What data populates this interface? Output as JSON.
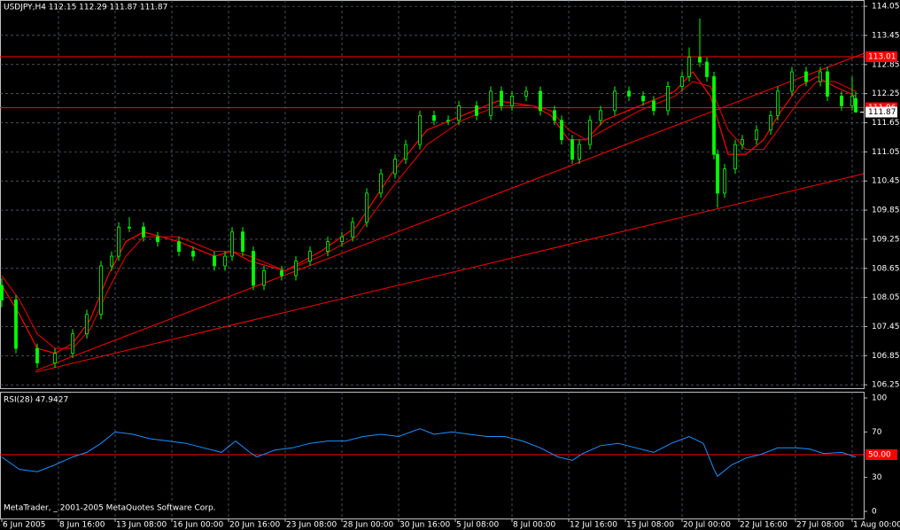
{
  "footer": "MetaTrader, _ 2001-2005 MetaQuotes Software Corp.",
  "chart_data": [
    {
      "type": "candlestick",
      "title": "USDJPY,H4  112.15 112.29 111.87 111.87",
      "color": "#00ff00",
      "x": [
        0,
        4,
        10,
        15,
        20,
        24,
        28,
        31,
        33,
        36,
        40,
        44,
        50,
        54,
        60,
        63,
        65,
        68,
        71,
        74,
        79,
        83,
        87,
        92,
        96,
        99,
        103,
        107,
        111,
        114,
        118,
        122,
        126,
        129,
        134,
        138,
        141,
        144,
        148,
        152,
        156,
        158,
        161,
        163,
        166,
        169,
        173,
        177,
        181,
        184,
        188,
        192,
        194,
        197,
        199,
        201,
        202,
        204,
        207,
        209,
        213,
        217,
        219,
        223,
        227,
        231,
        233,
        237,
        240,
        241
      ],
      "open": [
        108.3,
        108.0,
        107.0,
        106.7,
        106.9,
        107.3,
        107.7,
        108.7,
        108.9,
        109.5,
        109.5,
        109.3,
        109.2,
        109.0,
        108.9,
        108.7,
        108.9,
        109.4,
        109.0,
        108.3,
        108.6,
        108.5,
        108.8,
        109.0,
        109.2,
        109.3,
        109.6,
        110.2,
        110.6,
        110.9,
        111.2,
        111.8,
        111.7,
        111.7,
        112.0,
        111.8,
        112.3,
        112.0,
        112.2,
        112.3,
        111.9,
        111.7,
        111.3,
        110.9,
        111.2,
        111.7,
        111.9,
        112.3,
        112.2,
        112.1,
        111.9,
        112.4,
        112.6,
        113.0,
        112.9,
        112.6,
        111.0,
        110.2,
        110.7,
        111.2,
        111.3,
        111.5,
        111.8,
        112.3,
        112.7,
        112.5,
        112.7,
        112.2,
        112.0,
        112.15
      ],
      "high": [
        108.45,
        108.1,
        107.1,
        107.0,
        107.4,
        107.8,
        108.8,
        109.0,
        109.6,
        109.7,
        109.6,
        109.4,
        109.3,
        109.1,
        109.0,
        109.0,
        109.5,
        109.5,
        109.1,
        108.7,
        108.7,
        108.9,
        109.1,
        109.3,
        109.4,
        109.7,
        110.3,
        110.7,
        111.0,
        111.3,
        111.9,
        111.9,
        111.8,
        112.1,
        112.1,
        112.4,
        112.4,
        112.3,
        112.4,
        112.4,
        112.0,
        111.8,
        111.4,
        111.3,
        111.8,
        112.0,
        112.4,
        112.4,
        112.3,
        112.2,
        112.5,
        112.7,
        113.2,
        113.8,
        113.0,
        112.7,
        111.1,
        110.8,
        111.3,
        111.4,
        111.6,
        111.9,
        112.4,
        112.8,
        112.8,
        112.8,
        112.8,
        112.3,
        112.6,
        112.29
      ],
      "low": [
        107.85,
        106.9,
        106.6,
        106.6,
        106.8,
        107.2,
        107.6,
        108.6,
        108.8,
        109.4,
        109.2,
        109.1,
        108.9,
        108.8,
        108.6,
        108.6,
        108.8,
        108.9,
        108.2,
        108.2,
        108.4,
        108.4,
        108.7,
        108.9,
        109.1,
        109.2,
        109.5,
        110.1,
        110.5,
        110.8,
        111.1,
        111.6,
        111.6,
        111.6,
        111.7,
        111.7,
        111.9,
        111.9,
        112.1,
        111.8,
        111.6,
        111.2,
        110.8,
        110.8,
        111.1,
        111.6,
        111.8,
        112.1,
        112.0,
        111.8,
        111.8,
        112.3,
        112.5,
        112.8,
        112.5,
        110.9,
        109.9,
        110.1,
        110.6,
        111.1,
        111.2,
        111.4,
        111.7,
        112.2,
        112.4,
        112.4,
        112.1,
        111.9,
        111.9,
        111.87
      ],
      "close": [
        108.0,
        107.0,
        106.7,
        106.9,
        107.3,
        107.7,
        108.7,
        108.9,
        109.5,
        109.5,
        109.3,
        109.2,
        109.0,
        108.9,
        108.7,
        108.9,
        109.4,
        109.0,
        108.3,
        108.6,
        108.5,
        108.8,
        109.0,
        109.2,
        109.3,
        109.6,
        110.2,
        110.6,
        110.9,
        111.2,
        111.8,
        111.7,
        111.7,
        112.0,
        111.8,
        112.3,
        112.0,
        112.2,
        112.3,
        111.9,
        111.7,
        111.3,
        110.9,
        111.2,
        111.7,
        111.9,
        112.3,
        112.2,
        112.1,
        111.9,
        112.4,
        112.6,
        113.0,
        112.9,
        112.6,
        111.0,
        110.2,
        110.7,
        111.2,
        111.3,
        111.5,
        111.8,
        112.3,
        112.7,
        112.5,
        112.7,
        112.2,
        112.0,
        112.2,
        111.87
      ],
      "series": [
        {
          "color": "#ff0000",
          "x": [
            0,
            5,
            10,
            15,
            20,
            25,
            30,
            35,
            40,
            50,
            60,
            65,
            70,
            80,
            90,
            100,
            110,
            120,
            130,
            140,
            150,
            155,
            160,
            165,
            170,
            180,
            190,
            195,
            200,
            205,
            210,
            215,
            220,
            225,
            230,
            235,
            241
          ],
          "values": [
            108.3,
            107.7,
            107.0,
            106.9,
            107.1,
            107.6,
            108.5,
            109.2,
            109.4,
            109.2,
            108.9,
            109.0,
            108.8,
            108.6,
            109.0,
            109.5,
            110.6,
            111.5,
            111.8,
            112.1,
            112.0,
            111.8,
            111.3,
            111.3,
            111.7,
            112.0,
            112.3,
            112.7,
            112.2,
            111.0,
            111.0,
            111.3,
            111.9,
            112.4,
            112.6,
            112.4,
            112.2
          ]
        },
        {
          "color": "#cc0000",
          "x": [
            0,
            5,
            10,
            15,
            20,
            25,
            30,
            35,
            40,
            50,
            60,
            65,
            70,
            80,
            90,
            100,
            110,
            120,
            130,
            140,
            150,
            155,
            160,
            165,
            170,
            180,
            190,
            195,
            200,
            205,
            210,
            215,
            220,
            225,
            230,
            235,
            241
          ],
          "values": [
            108.5,
            108.0,
            107.3,
            107.0,
            107.0,
            107.4,
            108.2,
            108.9,
            109.3,
            109.3,
            109.0,
            109.0,
            108.9,
            108.6,
            108.9,
            109.3,
            110.3,
            111.2,
            111.7,
            112.0,
            112.0,
            111.9,
            111.5,
            111.3,
            111.5,
            111.9,
            112.2,
            112.5,
            112.4,
            111.5,
            111.1,
            111.1,
            111.6,
            112.1,
            112.5,
            112.5,
            112.3
          ]
        }
      ],
      "trend_lines": [
        {
          "x": [
            9.5,
            243.25
          ],
          "values": [
            106.54,
            113.08
          ]
        },
        {
          "x": [
            9.5,
            243.25
          ],
          "values": [
            106.51,
            110.6
          ]
        }
      ],
      "levels": [
        113.01,
        111.96
      ],
      "last_price": 111.87,
      "xlim": [
        -0.5,
        243.25
      ],
      "ylim": [
        106.18,
        114.18
      ],
      "yticks": [
        106.25,
        106.85,
        107.45,
        108.05,
        108.65,
        109.25,
        109.85,
        110.45,
        111.05,
        111.65,
        112.25,
        112.85,
        113.45,
        114.05
      ],
      "grid": true
    },
    {
      "type": "line",
      "title": "RSI(28) 47.9427",
      "color": "#1e90ff",
      "x": [
        0,
        5,
        10,
        15,
        20,
        24,
        28,
        32,
        37,
        42,
        47,
        52,
        57,
        62,
        66,
        70,
        72,
        77,
        82,
        87,
        92,
        97,
        102,
        107,
        112,
        118,
        122,
        127,
        132,
        137,
        142,
        147,
        152,
        157,
        161,
        164,
        169,
        174,
        179,
        184,
        189,
        194,
        198,
        201,
        202,
        206,
        210,
        214,
        219,
        224,
        228,
        232,
        237,
        241
      ],
      "values": [
        48,
        37,
        35,
        41,
        48,
        52,
        60,
        70,
        68,
        64,
        62,
        60,
        56,
        52,
        62,
        52,
        48,
        54,
        56,
        60,
        62,
        62,
        66,
        68,
        66,
        73,
        68,
        70,
        68,
        66,
        66,
        62,
        56,
        48,
        45,
        51,
        58,
        60,
        56,
        52,
        60,
        66,
        60,
        37,
        31,
        41,
        47,
        50,
        56,
        56,
        55,
        51,
        52,
        47.9427
      ],
      "levels": [
        {
          "value": 50,
          "label": "50.00"
        }
      ],
      "xlim": [
        -0.5,
        243.25
      ],
      "ylim": [
        -6.25,
        105.47
      ],
      "yticks": [
        0,
        30,
        70,
        100
      ],
      "xticks": [
        {
          "value": 0,
          "label": "6 Jun 2005"
        },
        {
          "value": 16,
          "label": "8 Jun 16:00"
        },
        {
          "value": 32,
          "label": "13 Jun 08:00"
        },
        {
          "value": 48,
          "label": "16 Jun 00:00"
        },
        {
          "value": 64,
          "label": "20 Jun 16:00"
        },
        {
          "value": 80,
          "label": "23 Jun 08:00"
        },
        {
          "value": 96,
          "label": "28 Jun 00:00"
        },
        {
          "value": 112,
          "label": "30 Jun 16:00"
        },
        {
          "value": 128,
          "label": "5 Jul 08:00"
        },
        {
          "value": 144,
          "label": "8 Jul 00:00"
        },
        {
          "value": 160,
          "label": "12 Jul 16:00"
        },
        {
          "value": 176,
          "label": "15 Jul 08:00"
        },
        {
          "value": 192,
          "label": "20 Jul 00:00"
        },
        {
          "value": 208,
          "label": "22 Jul 16:00"
        },
        {
          "value": 224,
          "label": "27 Jul 08:00"
        },
        {
          "value": 240,
          "label": "1 Aug 00:00"
        }
      ],
      "grid": true
    }
  ]
}
